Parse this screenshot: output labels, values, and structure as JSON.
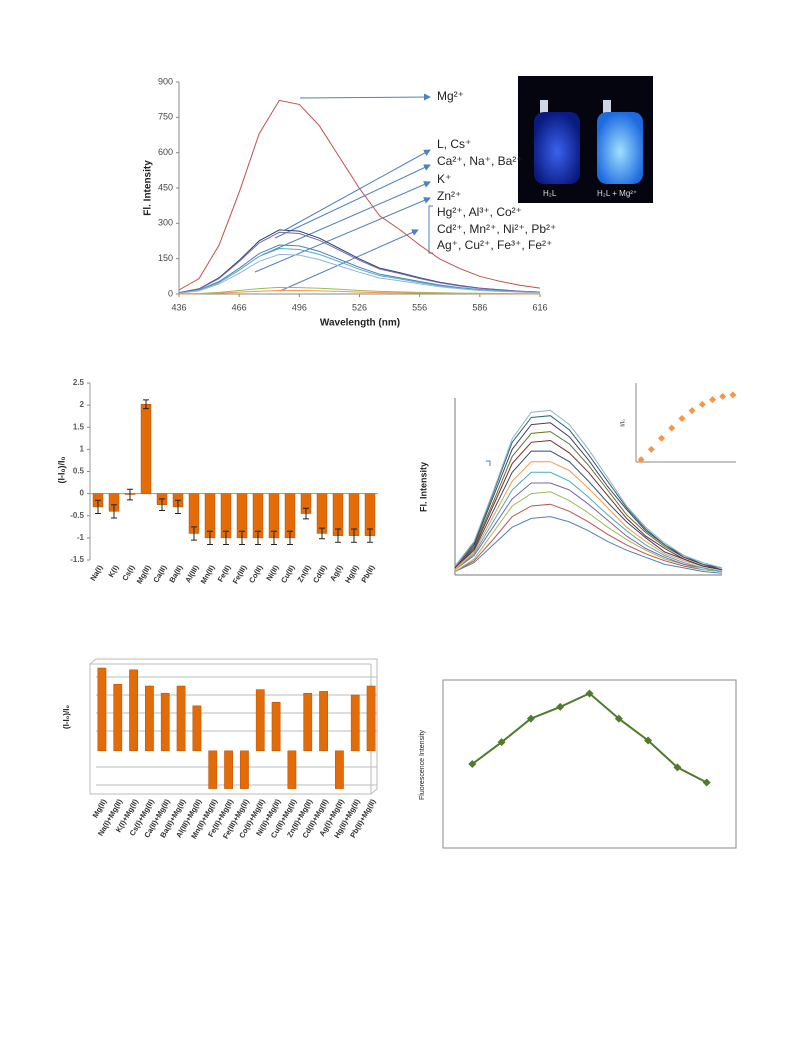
{
  "chart_data": [
    {
      "type": "line",
      "x_label": "Wavelength (nm)",
      "y_label": "Fl. Intensity",
      "x": [
        436,
        446,
        456,
        466,
        476,
        486,
        496,
        506,
        516,
        526,
        536,
        546,
        556,
        566,
        576,
        586,
        596,
        606,
        616
      ],
      "xlim": [
        436,
        616
      ],
      "xticks": [
        436,
        466,
        496,
        526,
        556,
        586,
        616
      ],
      "ylim": [
        0,
        900
      ],
      "yticks": [
        0,
        150,
        300,
        450,
        600,
        750,
        900
      ],
      "series": [
        {
          "color": "#c0504d",
          "values": [
            17,
            66,
            208,
            432,
            681,
            822,
            805,
            714,
            581,
            448,
            332,
            274,
            208,
            149,
            108,
            75,
            54,
            37,
            25
          ]
        },
        {
          "color": "#1f497d",
          "values": [
            6,
            22,
            69,
            143,
            226,
            272,
            267,
            237,
            193,
            149,
            110,
            91,
            69,
            50,
            36,
            25,
            18,
            12,
            8
          ]
        },
        {
          "color": "#8064a2",
          "values": [
            5,
            21,
            66,
            138,
            217,
            262,
            257,
            228,
            186,
            143,
            106,
            87,
            66,
            48,
            34,
            24,
            17,
            12,
            8
          ]
        },
        {
          "color": "#4f81bd",
          "values": [
            4,
            17,
            53,
            109,
            172,
            208,
            204,
            181,
            147,
            113,
            84,
            69,
            53,
            38,
            27,
            19,
            14,
            9,
            6
          ]
        },
        {
          "color": "#4bacc6",
          "values": [
            4,
            16,
            49,
            101,
            160,
            193,
            189,
            168,
            137,
            105,
            78,
            64,
            49,
            35,
            25,
            18,
            13,
            9,
            6
          ]
        },
        {
          "color": "#95b3d7",
          "values": [
            3,
            14,
            43,
            88,
            139,
            168,
            165,
            146,
            119,
            92,
            68,
            56,
            43,
            31,
            22,
            15,
            11,
            8,
            5
          ]
        },
        {
          "color": "#9bbb59",
          "values": [
            1,
            2,
            7,
            15,
            23,
            28,
            27,
            24,
            20,
            15,
            11,
            9,
            7,
            5,
            4,
            3,
            2,
            1,
            1
          ]
        },
        {
          "color": "#f79646",
          "values": [
            0,
            1,
            4,
            8,
            12,
            15,
            15,
            13,
            11,
            8,
            6,
            5,
            4,
            3,
            2,
            1,
            1,
            1,
            0
          ]
        }
      ],
      "annotations": [
        "Mg²⁺",
        "L, Cs⁺",
        "Ca²⁺, Na⁺, Ba²⁺",
        "K⁺",
        "Zn²⁺",
        "Hg²⁺, Al³⁺, Co²⁺",
        "Cd²⁺, Mn²⁺, Ni²⁺, Pb²⁺",
        "Ag⁺, Cu²⁺, Fe³⁺, Fe²⁺"
      ],
      "inset_labels": [
        "H₂L",
        "H₂L + Mg²⁺"
      ]
    },
    {
      "type": "bar",
      "y_label": "(I-I₀)/I₀",
      "color": "#e36c09",
      "categories": [
        "Na(I)",
        "K(I)",
        "Cs(I)",
        "Mg(II)",
        "Ca(II)",
        "Ba(II)",
        "Al(III)",
        "Mn(II)",
        "Fe(II)",
        "Fe(III)",
        "Co(II)",
        "Ni(II)",
        "Cu(II)",
        "Zn(II)",
        "Cd(II)",
        "Ag(I)",
        "Hg(II)",
        "Pb(II)"
      ],
      "values": [
        -0.3,
        -0.4,
        -0.02,
        2.02,
        -0.25,
        -0.3,
        -0.9,
        -1.0,
        -1.0,
        -1.0,
        -1.0,
        -1.0,
        -1.0,
        -0.45,
        -0.9,
        -0.95,
        -0.95,
        -0.95
      ],
      "errors": [
        0.15,
        0.15,
        0.12,
        0.1,
        0.13,
        0.15,
        0.15,
        0.15,
        0.15,
        0.15,
        0.15,
        0.15,
        0.15,
        0.12,
        0.12,
        0.15,
        0.15,
        0.15
      ],
      "ylim": [
        -1.5,
        2.5
      ],
      "yticks": [
        -1.5,
        -1,
        -0.5,
        0,
        0.5,
        1,
        1.5,
        2,
        2.5
      ]
    },
    {
      "type": "line",
      "y_label": "Fl. Intensity",
      "categories": [
        null,
        null,
        null,
        null,
        null,
        null,
        null,
        null,
        null,
        null,
        null,
        null,
        null,
        null,
        null
      ],
      "ylim": [
        0,
        100
      ],
      "series": [
        {
          "color": "#4f81bd",
          "values": [
            2,
            7,
            17,
            27,
            32,
            33,
            30,
            25,
            19,
            14,
            10,
            6,
            4,
            2,
            1
          ]
        },
        {
          "color": "#c0504d",
          "values": [
            2,
            8,
            20,
            33,
            39,
            40,
            36,
            30,
            23,
            17,
            12,
            8,
            5,
            3,
            2
          ]
        },
        {
          "color": "#9bbb59",
          "values": [
            2,
            9,
            24,
            39,
            46,
            47,
            42,
            35,
            27,
            20,
            14,
            9,
            6,
            3,
            2
          ]
        },
        {
          "color": "#8064a2",
          "values": [
            3,
            11,
            27,
            43,
            52,
            52,
            48,
            40,
            31,
            22,
            15,
            10,
            6,
            4,
            2
          ]
        },
        {
          "color": "#4bacc6",
          "values": [
            3,
            12,
            30,
            48,
            58,
            58,
            53,
            44,
            34,
            25,
            17,
            11,
            7,
            4,
            2
          ]
        },
        {
          "color": "#f79646",
          "values": [
            3,
            13,
            33,
            53,
            64,
            64,
            59,
            49,
            38,
            27,
            19,
            12,
            8,
            5,
            3
          ]
        },
        {
          "color": "#2c4d75",
          "values": [
            4,
            14,
            36,
            58,
            70,
            70,
            64,
            53,
            41,
            30,
            21,
            13,
            9,
            5,
            3
          ]
        },
        {
          "color": "#772c2a",
          "values": [
            4,
            15,
            39,
            63,
            75,
            76,
            69,
            58,
            45,
            32,
            22,
            15,
            9,
            5,
            3
          ]
        },
        {
          "color": "#5f7530",
          "values": [
            4,
            16,
            41,
            67,
            80,
            81,
            74,
            62,
            48,
            34,
            24,
            16,
            10,
            6,
            3
          ]
        },
        {
          "color": "#4d3b62",
          "values": [
            4,
            17,
            44,
            71,
            85,
            86,
            78,
            65,
            50,
            37,
            25,
            17,
            10,
            6,
            3
          ]
        },
        {
          "color": "#276a7c",
          "values": [
            5,
            18,
            46,
            75,
            89,
            90,
            82,
            68,
            53,
            38,
            26,
            17,
            11,
            6,
            4
          ]
        },
        {
          "color": "#8eb4c0",
          "values": [
            5,
            19,
            47,
            77,
            92,
            93,
            85,
            71,
            55,
            39,
            27,
            18,
            11,
            7,
            4
          ]
        }
      ]
    },
    {
      "type": "scatter",
      "y_label": "I/I₀",
      "color": "#f79646",
      "categories": [
        null,
        null,
        null,
        null,
        null,
        null,
        null,
        null,
        null,
        null
      ],
      "values": [
        0.03,
        0.16,
        0.3,
        0.43,
        0.55,
        0.65,
        0.73,
        0.79,
        0.83,
        0.85
      ],
      "ylim": [
        0,
        1
      ]
    },
    {
      "type": "bar",
      "y_label": "(I-I₀)/I₀",
      "color": "#e36c09",
      "categories": [
        "Mg(II)",
        "Na(I)+Mg(II)",
        "K(I)+Mg(II)",
        "Cs(I)+Mg(II)",
        "Ca(II)+Mg(II)",
        "Ba(II)+Mg(II)",
        "Al(III)+Mg(II)",
        "Mn(II)+Mg(II)",
        "Fe(II)+Mg(II)",
        "Fe(III)+Mg(II)",
        "Co(II)+Mg(II)",
        "Ni(II)+Mg(II)",
        "Cu(II)+Mg(II)",
        "Zn(II)+Mg(II)",
        "Cd(II)+Mg(II)",
        "Ag(I)+Mg(II)",
        "Hg(II)+Mg(II)",
        "Pb(II)+Mg(II)"
      ],
      "values": [
        4.6,
        3.7,
        4.5,
        3.6,
        3.2,
        3.6,
        2.5,
        -2.1,
        -2.1,
        -2.1,
        3.4,
        2.7,
        -2.1,
        3.2,
        3.3,
        -2.1,
        3.1,
        3.6
      ],
      "ylim": [
        -2.4,
        5.1
      ]
    },
    {
      "type": "line",
      "y_label": "Fluorescence Intensity",
      "color": "#4f7b2a",
      "x": [
        0.1,
        0.2,
        0.3,
        0.4,
        0.5,
        0.6,
        0.7,
        0.8,
        0.9
      ],
      "xlim": [
        0,
        1
      ],
      "values": [
        50,
        63,
        77,
        84,
        92,
        77,
        64,
        48,
        39
      ],
      "ylim": [
        0,
        100
      ]
    }
  ]
}
